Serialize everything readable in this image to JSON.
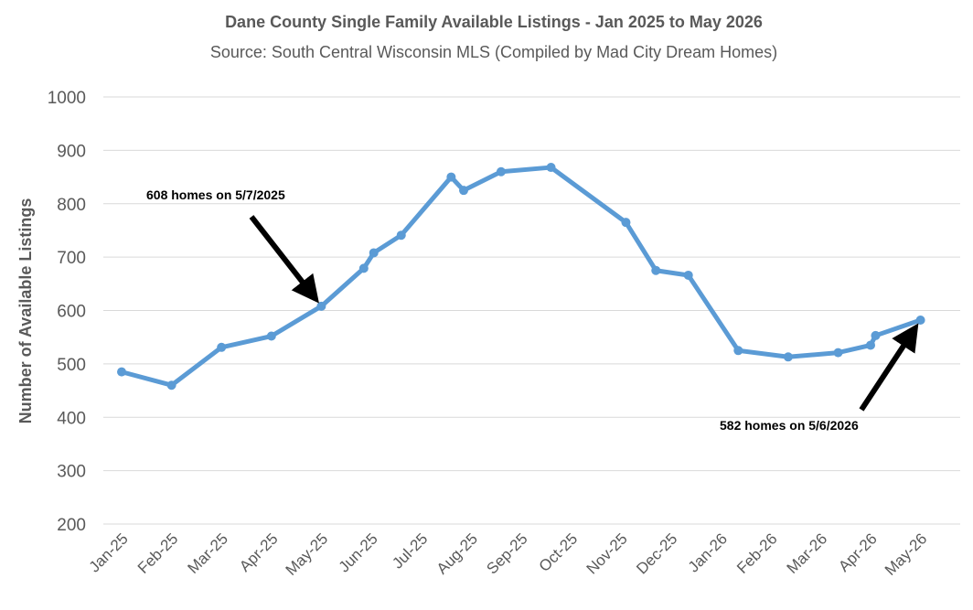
{
  "chart_data": {
    "type": "line",
    "title": "Dane County Single Family Available Listings - Jan 2025 to May 2026",
    "subtitle": "Source: South Central Wisconsin MLS (Compiled by Mad City Dream Homes)",
    "xlabel": "",
    "ylabel": "Number of Available Listings",
    "ylim": [
      200,
      1000
    ],
    "yticks": [
      "200",
      "300",
      "400",
      "500",
      "600",
      "700",
      "800",
      "900",
      "1000"
    ],
    "categories": [
      "Jan-25",
      "Feb-25",
      "Mar-25",
      "Apr-25",
      "May-25",
      "Jun-25",
      "Jul-25",
      "Aug-25",
      "Sep-25",
      "Oct-25",
      "Nov-25",
      "Dec-25",
      "Jan-26",
      "Feb-26",
      "Mar-26",
      "Apr-26",
      "May-26"
    ],
    "grid": true,
    "legend": "none",
    "line_color": "#5b9bd5",
    "series": [
      {
        "x": [
          0,
          1,
          2,
          3,
          4,
          4.85,
          5.05,
          5.6,
          6.6,
          6.85,
          7.6,
          8.6,
          10.1,
          10.7,
          11.35,
          12.35,
          13.35,
          14.35,
          15.0,
          15.1,
          16.0
        ],
        "values": [
          485,
          460,
          531,
          552,
          608,
          679,
          708,
          741,
          850,
          825,
          860,
          868,
          765,
          675,
          666,
          525,
          513,
          521,
          535,
          553,
          582
        ]
      }
    ],
    "annotations": [
      {
        "text": "608 homes on 5/7/2025",
        "point_index": 4
      },
      {
        "text": "582 homes on 5/6/2026",
        "point_index": 20
      }
    ]
  }
}
